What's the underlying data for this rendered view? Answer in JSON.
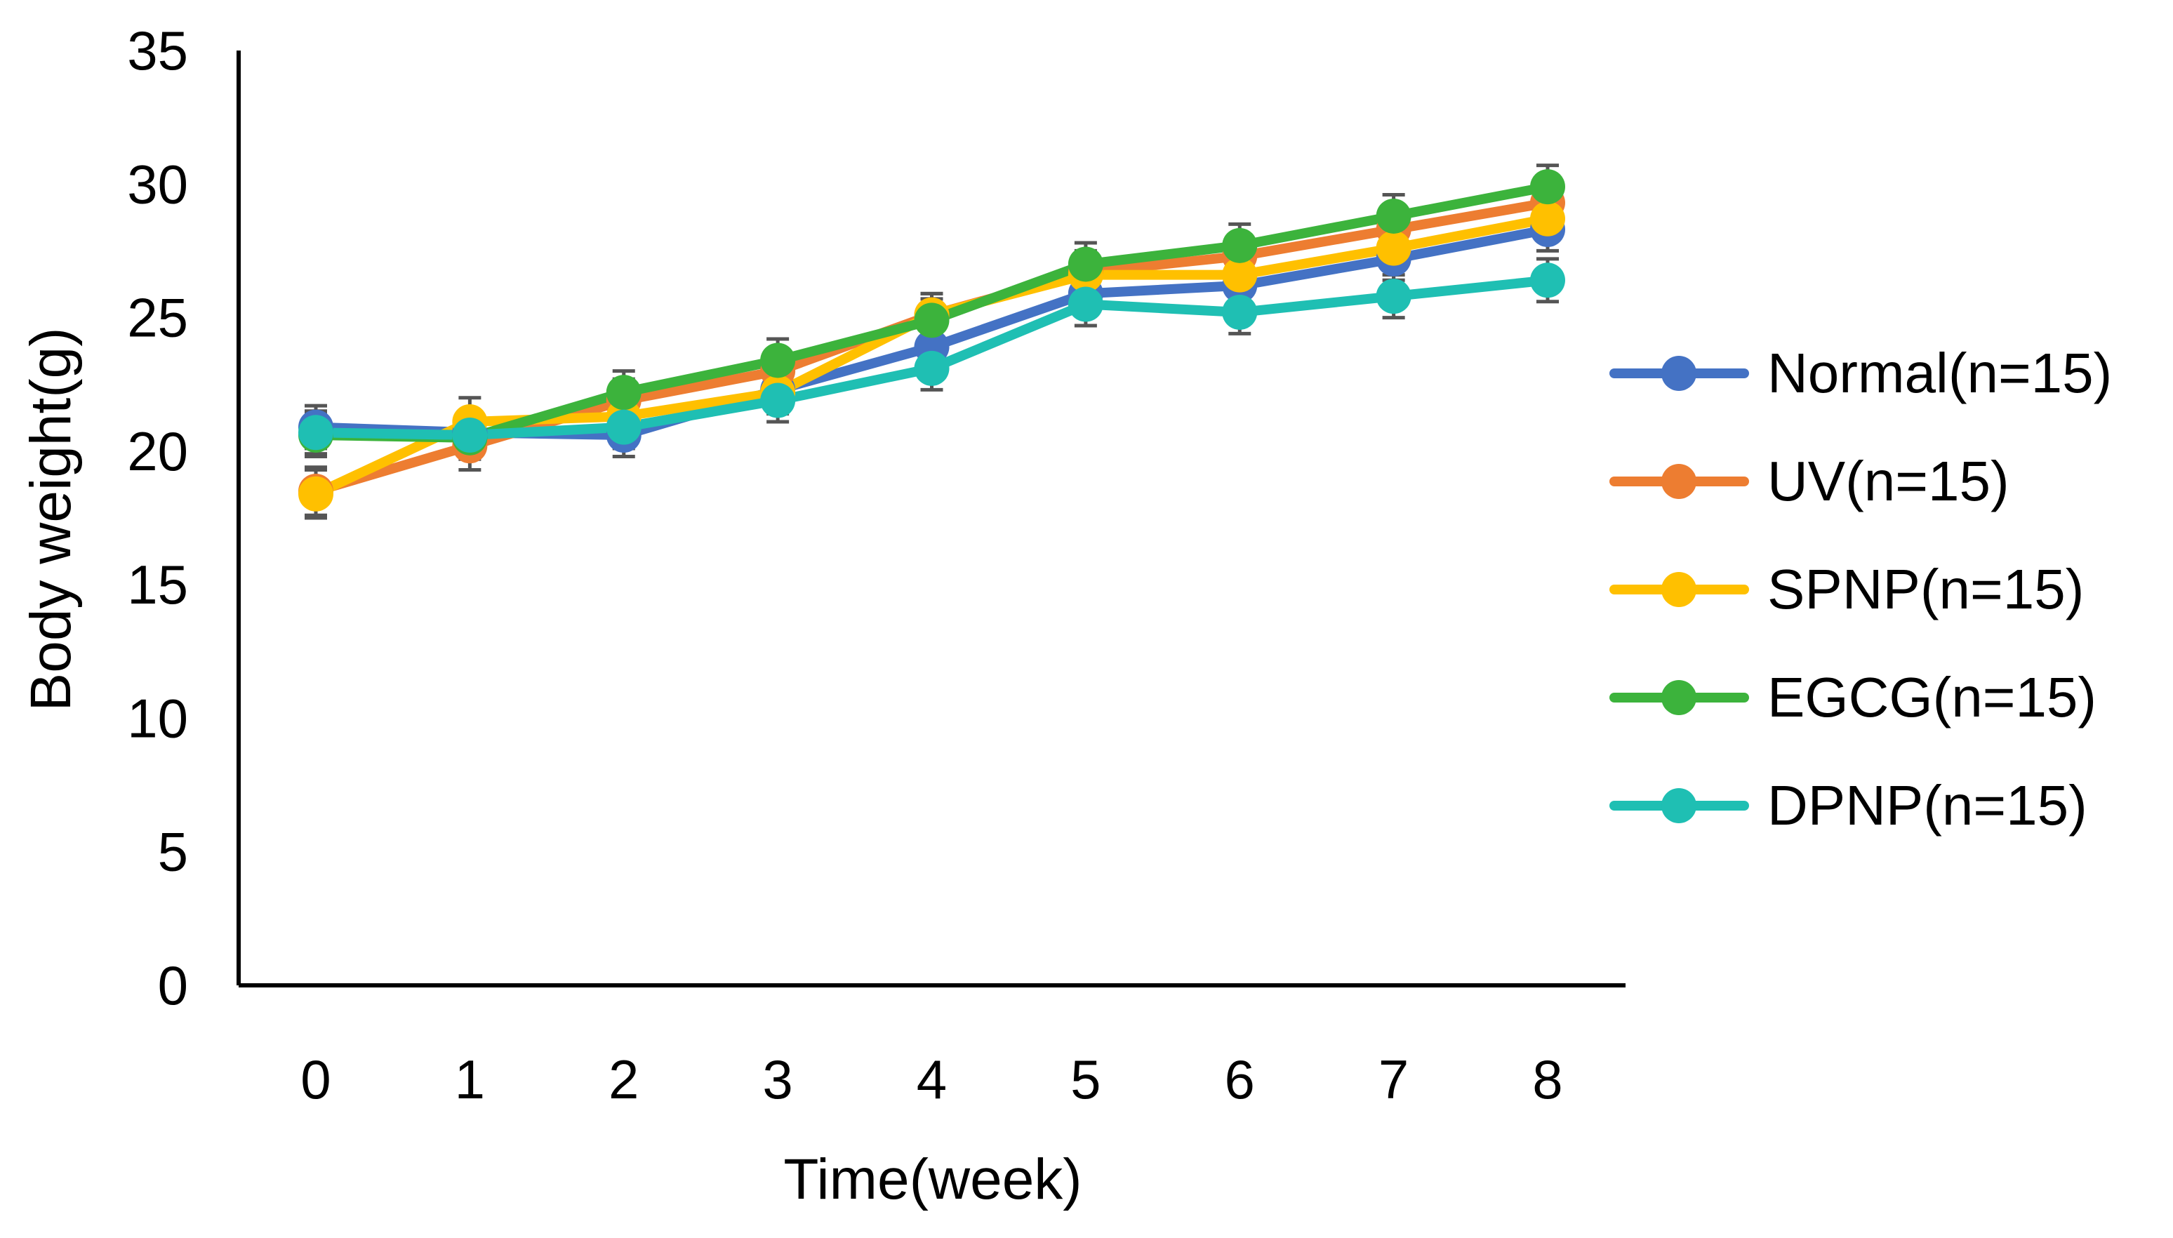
{
  "chart_data": {
    "type": "line",
    "title": "",
    "xlabel": "Time(week)",
    "ylabel": "Body weight(g)",
    "categories": [
      "0",
      "1",
      "2",
      "3",
      "4",
      "5",
      "6",
      "7",
      "8"
    ],
    "x": [
      0,
      1,
      2,
      3,
      4,
      5,
      6,
      7,
      8
    ],
    "ylim": [
      0,
      35
    ],
    "yticks": [
      "0",
      "5",
      "10",
      "15",
      "20",
      "25",
      "30",
      "35"
    ],
    "grid": false,
    "legend_position": "right",
    "series": [
      {
        "name": "Normal(n=15)",
        "color": "#4472C4",
        "values": [
          20.9,
          20.7,
          20.6,
          22.3,
          23.9,
          25.9,
          26.2,
          27.2,
          28.3
        ],
        "errors": [
          0.8,
          0.8,
          0.8,
          0.8,
          0.8,
          0.8,
          0.8,
          0.8,
          0.8
        ]
      },
      {
        "name": "UV(n=15)",
        "color": "#ED7D31",
        "values": [
          18.5,
          20.2,
          21.9,
          23.0,
          25.1,
          26.7,
          27.3,
          28.3,
          29.3
        ],
        "errors": [
          0.9,
          0.9,
          0.8,
          0.8,
          0.8,
          0.8,
          0.8,
          0.8,
          0.8
        ]
      },
      {
        "name": "SPNP(n=15)",
        "color": "#FFC000",
        "values": [
          18.4,
          21.1,
          21.3,
          22.2,
          25.1,
          26.6,
          26.6,
          27.6,
          28.7
        ],
        "errors": [
          0.9,
          0.9,
          0.8,
          0.8,
          0.8,
          0.8,
          0.8,
          0.8,
          0.8
        ]
      },
      {
        "name": "EGCG(n=15)",
        "color": "#3CB33C",
        "values": [
          20.6,
          20.5,
          22.2,
          23.4,
          24.9,
          27.0,
          27.7,
          28.8,
          29.9
        ],
        "errors": [
          0.8,
          0.8,
          0.8,
          0.8,
          0.8,
          0.8,
          0.8,
          0.8,
          0.8
        ]
      },
      {
        "name": "DPNP(n=15)",
        "color": "#1FBFB3",
        "values": [
          20.7,
          20.6,
          20.9,
          21.9,
          23.1,
          25.5,
          25.2,
          25.8,
          26.4
        ],
        "errors": [
          0.8,
          0.8,
          0.8,
          0.8,
          0.8,
          0.8,
          0.8,
          0.8,
          0.8
        ]
      }
    ]
  }
}
